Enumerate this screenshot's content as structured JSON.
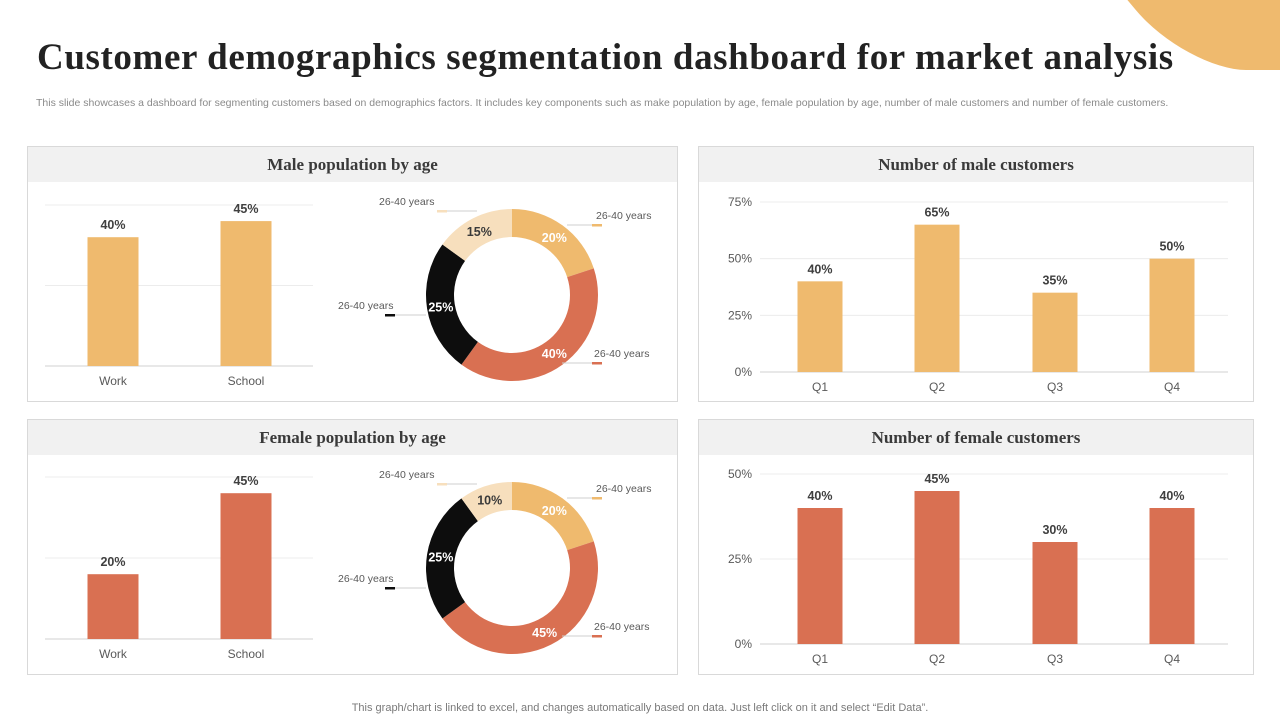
{
  "header": {
    "title": "Customer demographics segmentation dashboard for market analysis",
    "subtitle": "This slide showcases a dashboard for segmenting customers based on demographics factors. It includes key components such as make population by age, female population by age, number of male customers and number of female customers."
  },
  "colors": {
    "accent_tan": "#efba6e",
    "accent_orange": "#d97052",
    "black": "#0d0d0d",
    "light_beige": "#f7dfbd"
  },
  "panels": {
    "male_population": {
      "title": "Male population by age"
    },
    "male_customers": {
      "title": "Number of male customers"
    },
    "female_population": {
      "title": "Female population by age"
    },
    "female_customers": {
      "title": "Number of female customers"
    }
  },
  "footer": "This graph/chart is linked to excel,  and changes automatically based on data. Just left click on it and select “Edit Data”.",
  "chart_data": [
    {
      "id": "male-pop-bar",
      "type": "bar",
      "title": "Male population by age",
      "categories": [
        "Work",
        "School"
      ],
      "values": [
        40,
        45
      ],
      "labels": [
        "40%",
        "45%"
      ],
      "ylim": [
        0,
        50
      ],
      "color": "#efba6e",
      "grid": true,
      "show_y_ticks": false
    },
    {
      "id": "male-pop-donut",
      "type": "pie",
      "donut": true,
      "slices": [
        {
          "label": "26-40 years",
          "value": 20,
          "text": "20%",
          "color": "#efba6e",
          "text_color": "#ffffff"
        },
        {
          "label": "26-40 years",
          "value": 40,
          "text": "40%",
          "color": "#d97052",
          "text_color": "#ffffff"
        },
        {
          "label": "26-40 years",
          "value": 25,
          "text": "25%",
          "color": "#0d0d0d",
          "text_color": "#ffffff"
        },
        {
          "label": "26-40 years",
          "value": 15,
          "text": "15%",
          "color": "#f7dfbd",
          "text_color": "#3a3a3a"
        }
      ]
    },
    {
      "id": "male-cust-bar",
      "type": "bar",
      "title": "Number of male customers",
      "categories": [
        "Q1",
        "Q2",
        "Q3",
        "Q4"
      ],
      "values": [
        40,
        65,
        35,
        50
      ],
      "labels": [
        "40%",
        "65%",
        "35%",
        "50%"
      ],
      "ylim": [
        0,
        75
      ],
      "yticks": [
        "0%",
        "25%",
        "50%",
        "75%"
      ],
      "color": "#efba6e",
      "grid": true,
      "show_y_ticks": true
    },
    {
      "id": "female-pop-bar",
      "type": "bar",
      "title": "Female population by age",
      "categories": [
        "Work",
        "School"
      ],
      "values": [
        20,
        45
      ],
      "labels": [
        "20%",
        "45%"
      ],
      "ylim": [
        0,
        50
      ],
      "color": "#d97052",
      "grid": true,
      "show_y_ticks": false
    },
    {
      "id": "female-pop-donut",
      "type": "pie",
      "donut": true,
      "slices": [
        {
          "label": "26-40 years",
          "value": 20,
          "text": "20%",
          "color": "#efba6e",
          "text_color": "#ffffff"
        },
        {
          "label": "26-40 years",
          "value": 45,
          "text": "45%",
          "color": "#d97052",
          "text_color": "#ffffff"
        },
        {
          "label": "26-40 years",
          "value": 25,
          "text": "25%",
          "color": "#0d0d0d",
          "text_color": "#ffffff"
        },
        {
          "label": "26-40 years",
          "value": 10,
          "text": "10%",
          "color": "#f7dfbd",
          "text_color": "#3a3a3a"
        }
      ]
    },
    {
      "id": "female-cust-bar",
      "type": "bar",
      "title": "Number of female customers",
      "categories": [
        "Q1",
        "Q2",
        "Q3",
        "Q4"
      ],
      "values": [
        40,
        45,
        30,
        40
      ],
      "labels": [
        "40%",
        "45%",
        "30%",
        "40%"
      ],
      "ylim": [
        0,
        50
      ],
      "yticks": [
        "0%",
        "25%",
        "50%"
      ],
      "color": "#d97052",
      "grid": true,
      "show_y_ticks": true
    }
  ]
}
